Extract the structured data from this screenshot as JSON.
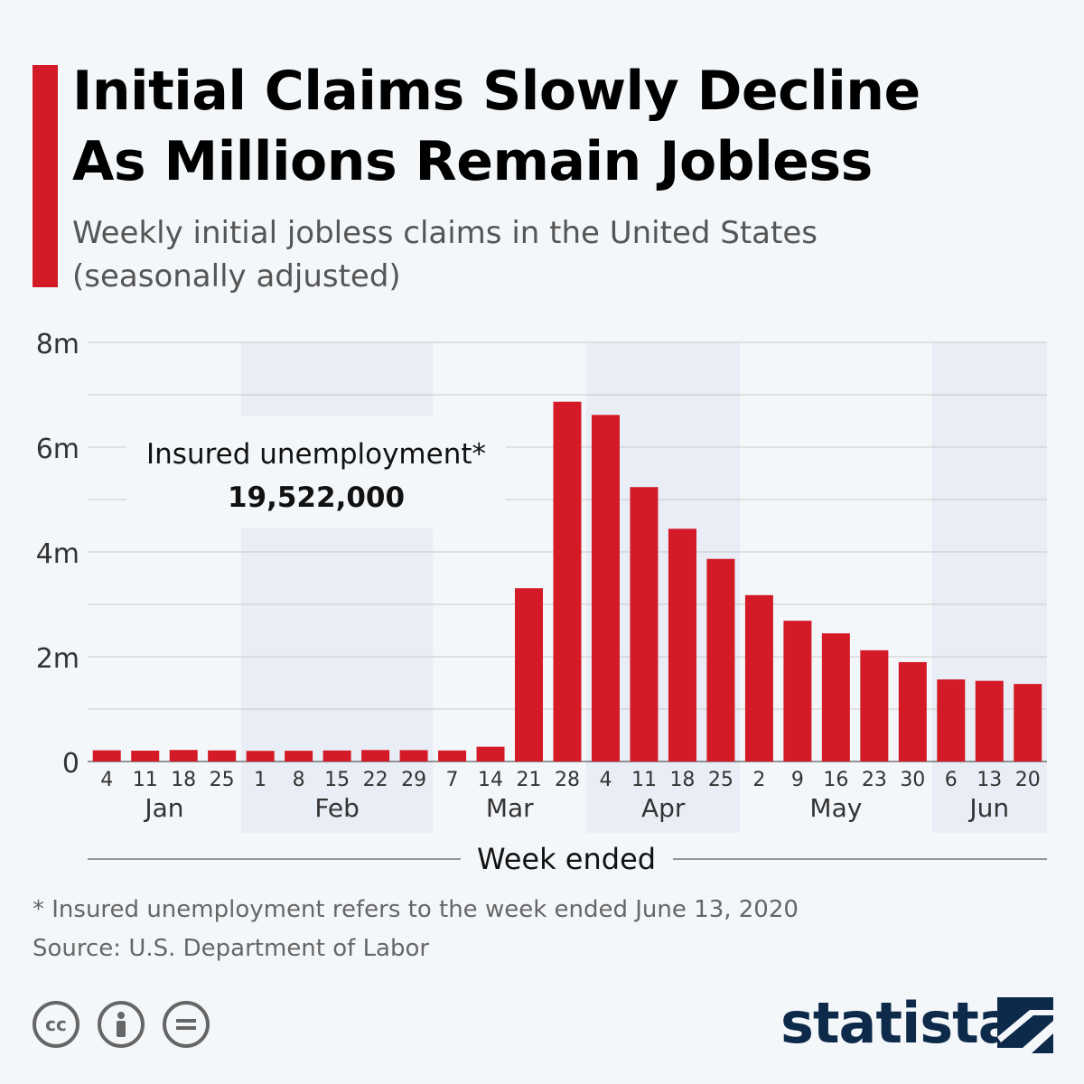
{
  "title_line1": "Initial Claims Slowly Decline",
  "title_line2": "As Millions Remain Jobless",
  "subtitle_line1": "Weekly initial jobless claims in the United States",
  "subtitle_line2": "(seasonally adjusted)",
  "chart_data": {
    "type": "bar",
    "title": "Initial Claims Slowly Decline As Millions Remain Jobless",
    "xlabel": "Week ended",
    "ylabel": "",
    "ylim": [
      0,
      8000000
    ],
    "yticks": [
      {
        "v": 0,
        "label": "0"
      },
      {
        "v": 2000000,
        "label": "2m"
      },
      {
        "v": 4000000,
        "label": "4m"
      },
      {
        "v": 6000000,
        "label": "6m"
      },
      {
        "v": 8000000,
        "label": "8m"
      }
    ],
    "grid": true,
    "bar_color": "#d31a26",
    "categories": [
      "4",
      "11",
      "18",
      "25",
      "1",
      "8",
      "15",
      "22",
      "29",
      "7",
      "14",
      "21",
      "28",
      "4",
      "11",
      "18",
      "25",
      "2",
      "9",
      "16",
      "23",
      "30",
      "6",
      "13",
      "20"
    ],
    "months": [
      {
        "label": "Jan",
        "start": 0,
        "end": 3,
        "shaded": false
      },
      {
        "label": "Feb",
        "start": 4,
        "end": 8,
        "shaded": true
      },
      {
        "label": "Mar",
        "start": 9,
        "end": 12,
        "shaded": false
      },
      {
        "label": "Apr",
        "start": 13,
        "end": 16,
        "shaded": true
      },
      {
        "label": "May",
        "start": 17,
        "end": 21,
        "shaded": false
      },
      {
        "label": "Jun",
        "start": 22,
        "end": 24,
        "shaded": true
      }
    ],
    "values": [
      214000,
      207000,
      220000,
      212000,
      203000,
      205000,
      211000,
      219000,
      217000,
      211000,
      282000,
      3307000,
      6867000,
      6615000,
      5237000,
      4442000,
      3867000,
      3176000,
      2687000,
      2446000,
      2123000,
      1897000,
      1566000,
      1540000,
      1480000
    ],
    "annotation": {
      "label": "Insured unemployment*",
      "value": "19,522,000"
    }
  },
  "footnote": "* Insured unemployment refers to the week ended June 13, 2020",
  "source": "Source: U.S. Department of Labor",
  "license_icons": [
    "cc-icon",
    "attribution-icon",
    "no-derivatives-icon"
  ],
  "cc_text": "cc",
  "brand": "statista"
}
